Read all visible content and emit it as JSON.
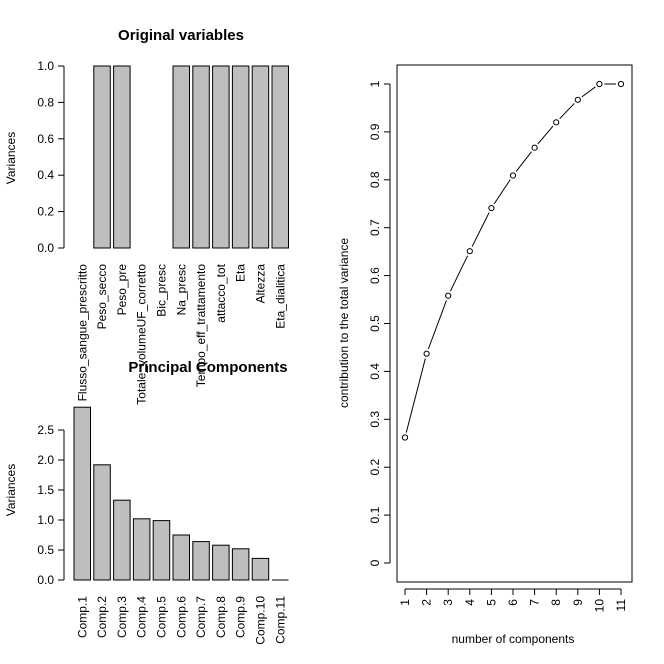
{
  "chart_data": [
    {
      "type": "bar",
      "title": "Original variables",
      "xlabel": "",
      "ylabel": "Variances",
      "ylim": [
        0,
        1
      ],
      "yticks": [
        "0.0",
        "0.2",
        "0.4",
        "0.6",
        "0.8",
        "1.0"
      ],
      "categories": [
        "Flusso_sangue_prescritto",
        "Peso_secco",
        "Peso_pre",
        "Totale_volumeUF_corretto",
        "Bic_presc",
        "Na_presc",
        "Tempo_eff_trattamento",
        "attacco_tot",
        "Eta",
        "Altezza",
        "Eta_dialitica"
      ],
      "values": [
        0,
        1,
        1,
        0,
        0,
        1,
        1,
        1,
        1,
        1,
        1
      ],
      "bar_color": "#bebebe"
    },
    {
      "type": "bar",
      "title": "Principal Components",
      "xlabel": "",
      "ylabel": "Variances",
      "ylim": [
        0,
        2.95
      ],
      "yticks": [
        "0.0",
        "0.5",
        "1.0",
        "1.5",
        "2.0",
        "2.5"
      ],
      "categories": [
        "Comp.1",
        "Comp.2",
        "Comp.3",
        "Comp.4",
        "Comp.5",
        "Comp.6",
        "Comp.7",
        "Comp.8",
        "Comp.9",
        "Comp.10",
        "Comp.11"
      ],
      "values": [
        2.88,
        1.92,
        1.33,
        1.02,
        0.99,
        0.75,
        0.64,
        0.58,
        0.52,
        0.36,
        0.0
      ],
      "bar_color": "#bebebe"
    },
    {
      "type": "line",
      "title": "",
      "xlabel": "number of components",
      "ylabel": "contribution to the total variance",
      "x": [
        1,
        2,
        3,
        4,
        5,
        6,
        7,
        8,
        9,
        10,
        11
      ],
      "y": [
        0.262,
        0.437,
        0.558,
        0.651,
        0.741,
        0.809,
        0.867,
        0.92,
        0.967,
        1.0,
        1.0
      ],
      "xticks": [
        "1",
        "2",
        "3",
        "4",
        "5",
        "6",
        "7",
        "8",
        "9",
        "10",
        "11"
      ],
      "yticks": [
        "0",
        "0.1",
        "0.2",
        "0.3",
        "0.4",
        "0.5",
        "0.6",
        "0.7",
        "0.8",
        "0.9",
        "1"
      ],
      "ylim": [
        -0.04,
        1.04
      ]
    }
  ]
}
